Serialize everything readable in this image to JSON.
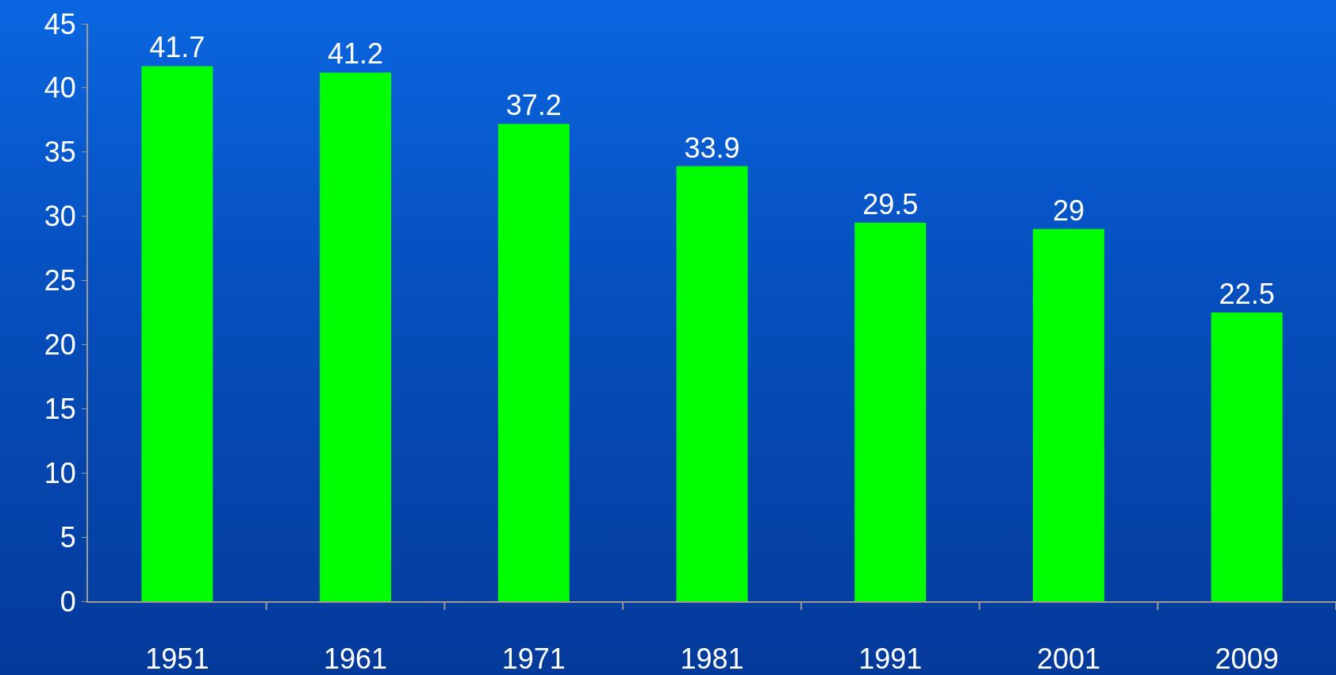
{
  "chart_data": {
    "type": "bar",
    "categories": [
      "1951",
      "1961",
      "1971",
      "1981",
      "1991",
      "2001",
      "2009"
    ],
    "values": [
      41.7,
      41.2,
      37.2,
      33.9,
      29.5,
      29,
      22.5
    ],
    "color": "#00ff00",
    "ylim": [
      0,
      45
    ],
    "yticks": [
      0,
      5,
      10,
      15,
      20,
      25,
      30,
      35,
      40,
      45
    ],
    "data_labels": true,
    "grid": false,
    "legend": false
  }
}
